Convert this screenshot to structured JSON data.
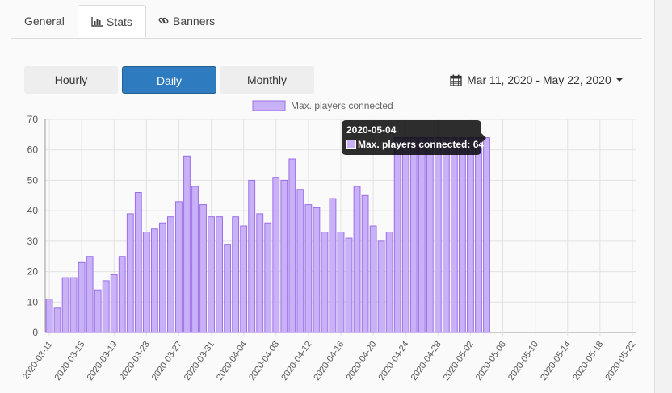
{
  "tabs": [
    {
      "label": "General",
      "icon": "none"
    },
    {
      "label": "Stats",
      "icon": "bar-chart-icon"
    },
    {
      "label": "Banners",
      "icon": "link-icon"
    }
  ],
  "range_buttons": {
    "hourly": "Hourly",
    "daily": "Daily",
    "monthly": "Monthly",
    "selected": "Daily"
  },
  "date_range": {
    "label": "Mar 11, 2020 - May 22, 2020",
    "icon": "calendar-icon"
  },
  "tooltip": {
    "title": "2020-05-04",
    "label": "Max. players connected: 64"
  },
  "colors": {
    "bar_fill": "#c9b1f7",
    "bar_stroke": "#9b6ee8",
    "accent": "#2f7bbf"
  },
  "chart_data": {
    "type": "bar",
    "legend": "Max. players connected",
    "legend_position": "top-center",
    "grid": true,
    "ylim": [
      0,
      70
    ],
    "yticks": [
      0,
      10,
      20,
      30,
      40,
      50,
      60,
      70
    ],
    "xlim": [
      "2020-03-11",
      "2020-05-22"
    ],
    "xticks": [
      "2020-03-11",
      "2020-03-15",
      "2020-03-19",
      "2020-03-23",
      "2020-03-27",
      "2020-03-31",
      "2020-04-04",
      "2020-04-08",
      "2020-04-12",
      "2020-04-16",
      "2020-04-20",
      "2020-04-24",
      "2020-04-28",
      "2020-05-02",
      "2020-05-06",
      "2020-05-10",
      "2020-05-14",
      "2020-05-18",
      "2020-05-22"
    ],
    "categories": [
      "2020-03-11",
      "2020-03-12",
      "2020-03-13",
      "2020-03-14",
      "2020-03-15",
      "2020-03-16",
      "2020-03-17",
      "2020-03-18",
      "2020-03-19",
      "2020-03-20",
      "2020-03-21",
      "2020-03-22",
      "2020-03-23",
      "2020-03-24",
      "2020-03-25",
      "2020-03-26",
      "2020-03-27",
      "2020-03-28",
      "2020-03-29",
      "2020-03-30",
      "2020-03-31",
      "2020-04-01",
      "2020-04-02",
      "2020-04-03",
      "2020-04-04",
      "2020-04-05",
      "2020-04-06",
      "2020-04-07",
      "2020-04-08",
      "2020-04-09",
      "2020-04-10",
      "2020-04-11",
      "2020-04-12",
      "2020-04-13",
      "2020-04-14",
      "2020-04-15",
      "2020-04-16",
      "2020-04-17",
      "2020-04-18",
      "2020-04-19",
      "2020-04-20",
      "2020-04-21",
      "2020-04-22",
      "2020-04-23",
      "2020-04-24",
      "2020-04-25",
      "2020-04-26",
      "2020-04-27",
      "2020-04-28",
      "2020-04-29",
      "2020-04-30",
      "2020-05-01",
      "2020-05-02",
      "2020-05-03",
      "2020-05-04"
    ],
    "series": [
      {
        "name": "Max. players connected",
        "values": [
          11,
          8,
          18,
          18,
          23,
          25,
          14,
          17,
          19,
          25,
          39,
          46,
          33,
          34,
          36,
          38,
          43,
          58,
          48,
          42,
          38,
          38,
          29,
          38,
          35,
          50,
          39,
          36,
          51,
          50,
          57,
          47,
          42,
          41,
          33,
          44,
          33,
          31,
          48,
          45,
          35,
          30,
          33,
          64,
          64,
          64,
          64,
          64,
          64,
          64,
          64,
          64,
          64,
          64,
          64
        ]
      }
    ]
  }
}
